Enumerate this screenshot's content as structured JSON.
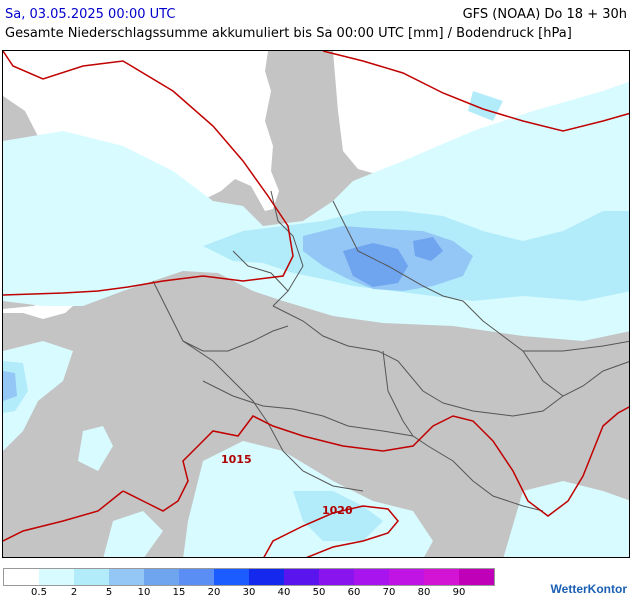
{
  "header": {
    "date": "Sa, 03.05.2025 00:00 UTC",
    "model": "GFS (NOAA) Do 18 + 30h",
    "subtitle": "Gesamte Niederschlagssumme akkumuliert bis Sa 00:00 UTC [mm] / Bodendruck [hPa]"
  },
  "map": {
    "isobar_labels": [
      "1015",
      "1020"
    ],
    "colors": {
      "land": "#c4c4c4",
      "sea": "#ffffff",
      "border": "#555555",
      "isobar": "#c00000",
      "precip_light": "#d8fbff",
      "precip_mid": "#b2ecfb",
      "precip_heavy": "#94c6f6",
      "precip_peak": "#6fa4ef"
    }
  },
  "legend": {
    "ticks": [
      "0.5",
      "2",
      "5",
      "10",
      "15",
      "20",
      "30",
      "40",
      "50",
      "60",
      "70",
      "80",
      "90"
    ],
    "colors": [
      "#ffffff",
      "#d8fbff",
      "#b2ecfb",
      "#94c6f6",
      "#6fa4ef",
      "#5b8ef5",
      "#1a5cff",
      "#1428ee",
      "#5a14ee",
      "#8a14ee",
      "#a814ee",
      "#c014e4",
      "#d414d4",
      "#c000b8"
    ]
  },
  "brand": "WetterKontor"
}
